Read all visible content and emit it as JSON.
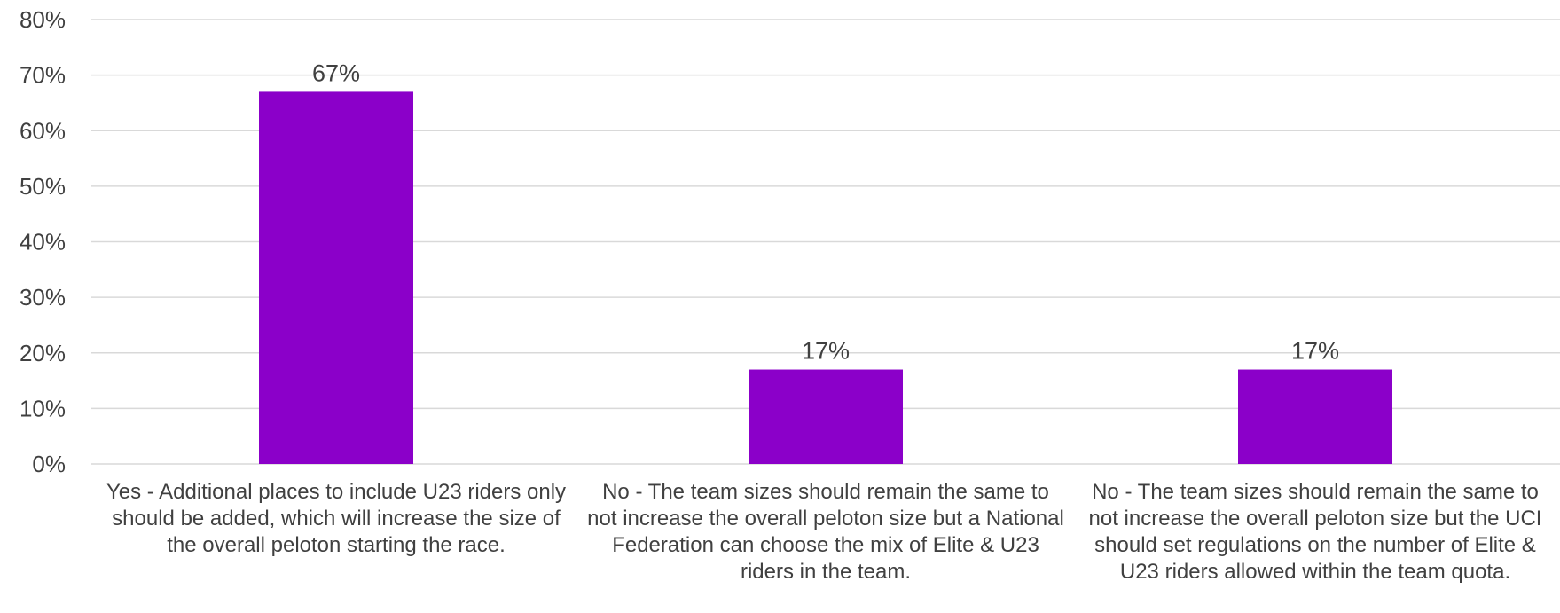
{
  "chart_data": {
    "type": "bar",
    "categories": [
      "Yes - Additional places to include U23 riders only should be added, which will increase the size of the overall peloton starting the race.",
      "No - The team sizes should remain the same to not increase the overall peloton size but a National Federation can choose the mix of Elite & U23 riders in the team.",
      "No - The team sizes should remain the same to not increase the overall peloton size but the UCI should set regulations on the number of Elite & U23 riders allowed within the team quota."
    ],
    "values": [
      67,
      17,
      17
    ],
    "data_labels": [
      "67%",
      "17%",
      "17%"
    ],
    "ylim": [
      0,
      80
    ],
    "yticks": [
      0,
      10,
      20,
      30,
      40,
      50,
      60,
      70,
      80
    ],
    "ytick_labels": [
      "0%",
      "10%",
      "20%",
      "30%",
      "40%",
      "50%",
      "60%",
      "70%",
      "80%"
    ],
    "title": "",
    "xlabel": "",
    "ylabel": "",
    "grid": true,
    "legend": "none",
    "bar_color": "#8B00C9",
    "grid_color": "#D9D9D9",
    "text_color": "#404040"
  }
}
